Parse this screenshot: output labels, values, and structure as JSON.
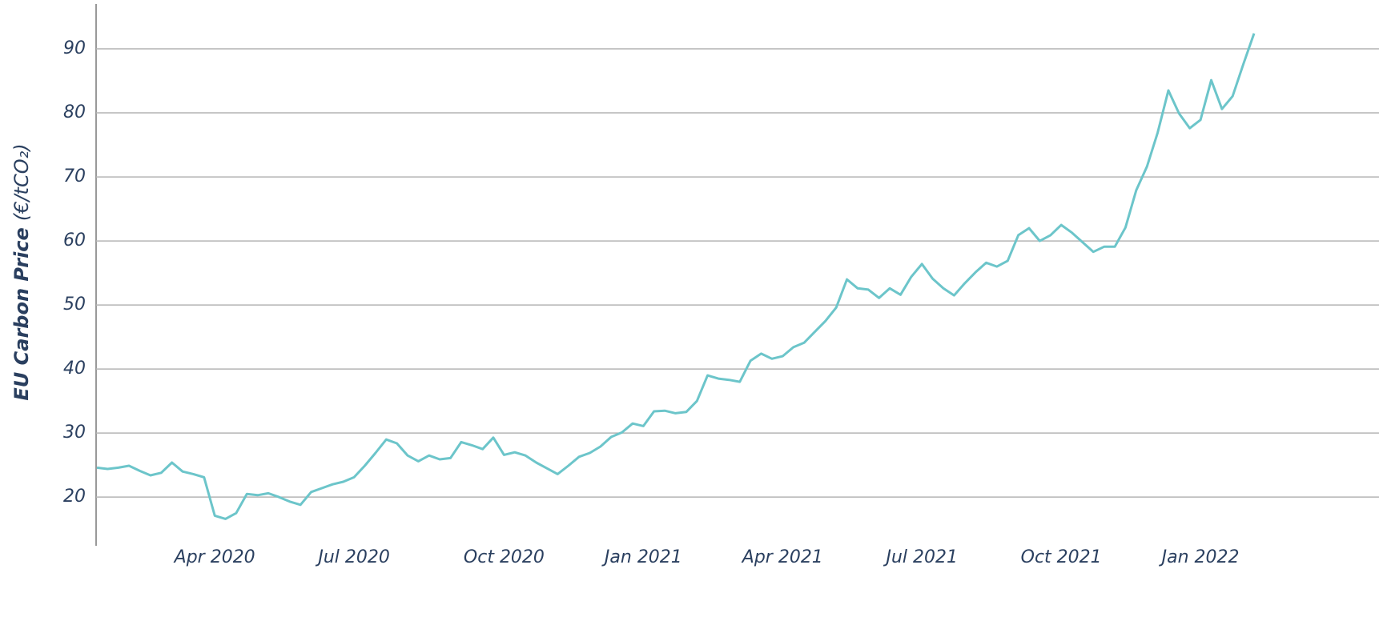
{
  "chart_data": {
    "type": "line",
    "y_label": "EU Carbon Price",
    "y_label_unit": "(€/tCO₂)",
    "categories": [
      null,
      null,
      null,
      null,
      null,
      null,
      null,
      null,
      null,
      null,
      null,
      "Apr 2020",
      null,
      null,
      null,
      null,
      null,
      null,
      null,
      null,
      null,
      null,
      null,
      null,
      "Jul 2020",
      null,
      null,
      null,
      null,
      null,
      null,
      null,
      null,
      null,
      null,
      null,
      null,
      null,
      "Oct 2020",
      null,
      null,
      null,
      null,
      null,
      null,
      null,
      null,
      null,
      null,
      null,
      null,
      "Jan 2021",
      null,
      null,
      null,
      null,
      null,
      null,
      null,
      null,
      null,
      null,
      null,
      null,
      "Apr 2021",
      null,
      null,
      null,
      null,
      null,
      null,
      null,
      null,
      null,
      null,
      null,
      null,
      "Jul 2021",
      null,
      null,
      null,
      null,
      null,
      null,
      null,
      null,
      null,
      null,
      null,
      null,
      "Oct 2021",
      null,
      null,
      null,
      null,
      null,
      null,
      null,
      null,
      null,
      null,
      null,
      null,
      "Jan 2022",
      null,
      null,
      null,
      null,
      null
    ],
    "series": [
      {
        "color": "#6cc5ca",
        "values": [
          24.6,
          24.4,
          24.6,
          24.9,
          24.1,
          23.4,
          23.8,
          25.4,
          24.0,
          23.6,
          23.1,
          17.1,
          16.6,
          17.5,
          20.5,
          20.3,
          20.6,
          20.0,
          19.3,
          18.8,
          20.8,
          21.4,
          22.0,
          22.4,
          23.1,
          24.9,
          26.9,
          29.0,
          28.4,
          26.5,
          25.6,
          26.5,
          25.9,
          26.1,
          28.6,
          28.1,
          27.5,
          29.3,
          26.6,
          27.0,
          26.5,
          25.4,
          24.5,
          23.6,
          24.9,
          26.3,
          26.9,
          27.9,
          29.4,
          30.1,
          31.5,
          31.1,
          33.4,
          33.5,
          33.1,
          33.3,
          35.0,
          39.0,
          38.5,
          38.3,
          38.0,
          41.3,
          42.4,
          41.6,
          42.0,
          43.4,
          44.1,
          45.8,
          47.5,
          49.6,
          54.0,
          52.6,
          52.4,
          51.1,
          52.6,
          51.6,
          54.4,
          56.4,
          54.1,
          52.6,
          51.5,
          53.4,
          55.1,
          56.6,
          56.0,
          56.9,
          60.9,
          62.0,
          60.0,
          60.9,
          62.5,
          61.3,
          59.8,
          58.3,
          59.1,
          59.1,
          62.1,
          67.9,
          71.6,
          76.9,
          83.5,
          79.9,
          77.6,
          78.9,
          85.1,
          80.6,
          82.6,
          87.6,
          92.4
        ]
      }
    ],
    "ylim": [
      12.4,
      97
    ],
    "yticks": [
      20,
      30,
      40,
      50,
      60,
      70,
      80,
      90
    ],
    "grid": true
  }
}
